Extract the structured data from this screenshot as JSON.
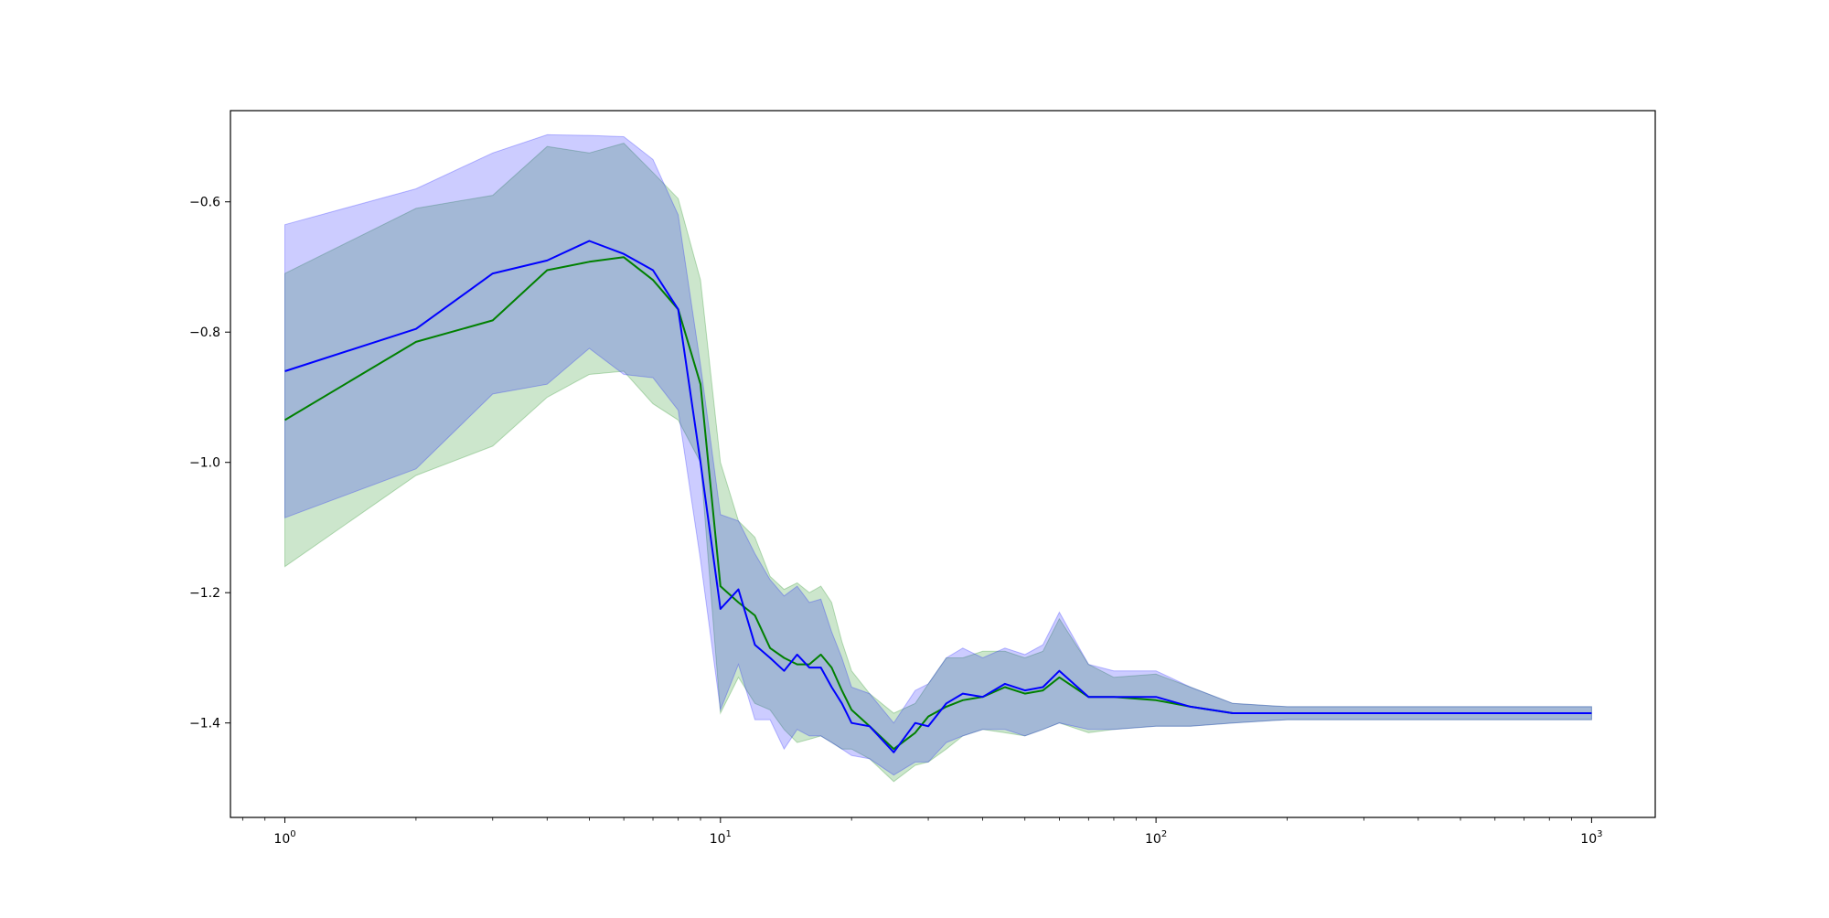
{
  "chart_data": {
    "type": "line",
    "title": "",
    "xlabel": "",
    "ylabel": "",
    "x_scale": "log",
    "xlim": [
      0.75,
      1400
    ],
    "ylim": [
      -1.545,
      -0.46
    ],
    "grid": false,
    "legend": "none",
    "x_ticks": [
      {
        "value": 1,
        "base": "10",
        "exp": "0"
      },
      {
        "value": 10,
        "base": "10",
        "exp": "1"
      },
      {
        "value": 100,
        "base": "10",
        "exp": "2"
      },
      {
        "value": 1000,
        "base": "10",
        "exp": "3"
      }
    ],
    "y_ticks": [
      {
        "value": -0.6,
        "label": "−0.6"
      },
      {
        "value": -0.8,
        "label": "−0.8"
      },
      {
        "value": -1.0,
        "label": "−1.0"
      },
      {
        "value": -1.2,
        "label": "−1.2"
      },
      {
        "value": -1.4,
        "label": "−1.4"
      }
    ],
    "series": [
      {
        "color": "#008000",
        "band_color": "#008000",
        "x": [
          1,
          2,
          3,
          4,
          5,
          6,
          7,
          8,
          9,
          10,
          11,
          12,
          13,
          14,
          15,
          16,
          17,
          18,
          19,
          20,
          22,
          25,
          28,
          30,
          33,
          36,
          40,
          45,
          50,
          55,
          60,
          70,
          80,
          100,
          120,
          150,
          200,
          300,
          400,
          500,
          700,
          1000
        ],
        "y": [
          -0.935,
          -0.815,
          -0.782,
          -0.705,
          -0.692,
          -0.685,
          -0.72,
          -0.765,
          -0.88,
          -1.19,
          -1.215,
          -1.235,
          -1.285,
          -1.3,
          -1.31,
          -1.31,
          -1.295,
          -1.315,
          -1.35,
          -1.38,
          -1.405,
          -1.44,
          -1.415,
          -1.39,
          -1.375,
          -1.365,
          -1.36,
          -1.345,
          -1.355,
          -1.35,
          -1.33,
          -1.36,
          -1.36,
          -1.365,
          -1.375,
          -1.385,
          -1.385,
          -1.385,
          -1.385,
          -1.385,
          -1.385,
          -1.385
        ],
        "lower": [
          -1.16,
          -1.02,
          -0.975,
          -0.9,
          -0.865,
          -0.86,
          -0.91,
          -0.935,
          -1.0,
          -1.385,
          -1.33,
          -1.37,
          -1.38,
          -1.41,
          -1.43,
          -1.425,
          -1.42,
          -1.43,
          -1.44,
          -1.44,
          -1.455,
          -1.49,
          -1.465,
          -1.46,
          -1.44,
          -1.42,
          -1.41,
          -1.415,
          -1.42,
          -1.41,
          -1.4,
          -1.415,
          -1.41,
          -1.405,
          -1.405,
          -1.4,
          -1.395,
          -1.395,
          -1.395,
          -1.395,
          -1.395,
          -1.395
        ],
        "upper": [
          -0.71,
          -0.61,
          -0.59,
          -0.515,
          -0.525,
          -0.51,
          -0.555,
          -0.595,
          -0.72,
          -1.0,
          -1.09,
          -1.115,
          -1.175,
          -1.195,
          -1.185,
          -1.2,
          -1.19,
          -1.215,
          -1.275,
          -1.32,
          -1.355,
          -1.385,
          -1.37,
          -1.34,
          -1.3,
          -1.3,
          -1.29,
          -1.29,
          -1.3,
          -1.29,
          -1.24,
          -1.31,
          -1.33,
          -1.325,
          -1.345,
          -1.37,
          -1.375,
          -1.375,
          -1.375,
          -1.375,
          -1.375,
          -1.375
        ]
      },
      {
        "color": "#0000ff",
        "band_color": "#0000ff",
        "x": [
          1,
          2,
          3,
          4,
          5,
          6,
          7,
          8,
          9,
          10,
          11,
          12,
          13,
          14,
          15,
          16,
          17,
          18,
          19,
          20,
          22,
          25,
          28,
          30,
          33,
          36,
          40,
          45,
          50,
          55,
          60,
          70,
          80,
          100,
          120,
          150,
          200,
          300,
          400,
          500,
          700,
          1000
        ],
        "y": [
          -0.86,
          -0.795,
          -0.71,
          -0.69,
          -0.66,
          -0.68,
          -0.705,
          -0.765,
          -1.0,
          -1.225,
          -1.195,
          -1.28,
          -1.3,
          -1.32,
          -1.295,
          -1.315,
          -1.315,
          -1.345,
          -1.37,
          -1.4,
          -1.405,
          -1.445,
          -1.4,
          -1.405,
          -1.37,
          -1.355,
          -1.36,
          -1.34,
          -1.35,
          -1.345,
          -1.32,
          -1.36,
          -1.36,
          -1.36,
          -1.375,
          -1.385,
          -1.385,
          -1.385,
          -1.385,
          -1.385,
          -1.385,
          -1.385
        ],
        "lower": [
          -1.085,
          -1.01,
          -0.895,
          -0.88,
          -0.825,
          -0.865,
          -0.87,
          -0.92,
          -1.15,
          -1.38,
          -1.31,
          -1.395,
          -1.395,
          -1.44,
          -1.41,
          -1.42,
          -1.42,
          -1.43,
          -1.44,
          -1.45,
          -1.455,
          -1.48,
          -1.46,
          -1.46,
          -1.43,
          -1.42,
          -1.41,
          -1.41,
          -1.42,
          -1.41,
          -1.4,
          -1.41,
          -1.41,
          -1.405,
          -1.405,
          -1.4,
          -1.395,
          -1.395,
          -1.395,
          -1.395,
          -1.395,
          -1.395
        ],
        "upper": [
          -0.635,
          -0.58,
          -0.525,
          -0.497,
          -0.498,
          -0.5,
          -0.535,
          -0.62,
          -0.85,
          -1.08,
          -1.09,
          -1.14,
          -1.18,
          -1.205,
          -1.19,
          -1.215,
          -1.21,
          -1.26,
          -1.3,
          -1.345,
          -1.355,
          -1.4,
          -1.35,
          -1.34,
          -1.3,
          -1.285,
          -1.3,
          -1.285,
          -1.295,
          -1.28,
          -1.23,
          -1.31,
          -1.32,
          -1.32,
          -1.345,
          -1.37,
          -1.375,
          -1.375,
          -1.375,
          -1.375,
          -1.375,
          -1.375
        ]
      }
    ]
  }
}
